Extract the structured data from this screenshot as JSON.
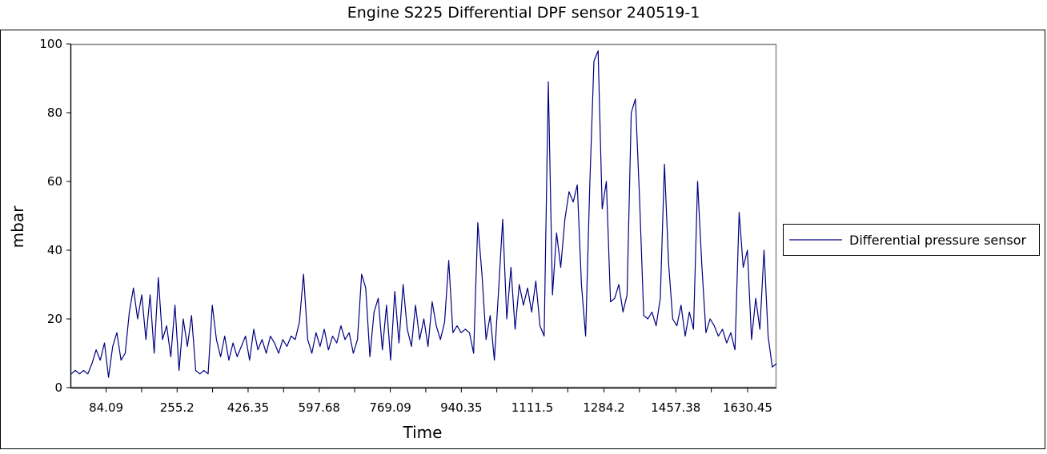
{
  "chart_data": {
    "type": "line",
    "title": "Engine S225  Differential DPF sensor 240519-1",
    "xlabel": "Time",
    "ylabel": "mbar",
    "xlim": [
      0,
      1700
    ],
    "ylim": [
      0,
      100
    ],
    "yticks": [
      0,
      20,
      40,
      60,
      80,
      100
    ],
    "xtick_labels": [
      "84.09",
      "255.2",
      "426.35",
      "597.68",
      "769.09",
      "940.35",
      "1111.5",
      "1284.2",
      "1457.38",
      "1630.45"
    ],
    "grid": false,
    "legend_position": "right",
    "series": [
      {
        "name": "Differential pressure sensor",
        "color": "#000080",
        "x_step": 10,
        "values": [
          4,
          5,
          4,
          5,
          4,
          7,
          11,
          8,
          13,
          3,
          12,
          16,
          8,
          10,
          22,
          29,
          20,
          27,
          14,
          27,
          10,
          32,
          14,
          18,
          9,
          24,
          5,
          20,
          12,
          21,
          5,
          4,
          5,
          4,
          24,
          14,
          9,
          15,
          8,
          13,
          9,
          12,
          15,
          8,
          17,
          11,
          14,
          10,
          15,
          13,
          10,
          14,
          12,
          15,
          14,
          19,
          33,
          14,
          10,
          16,
          12,
          17,
          11,
          15,
          13,
          18,
          14,
          16,
          10,
          14,
          33,
          29,
          9,
          22,
          26,
          11,
          24,
          8,
          28,
          13,
          30,
          17,
          12,
          24,
          14,
          20,
          12,
          25,
          18,
          14,
          19,
          37,
          16,
          18,
          16,
          17,
          16,
          10,
          48,
          33,
          14,
          21,
          8,
          28,
          49,
          20,
          35,
          17,
          30,
          24,
          29,
          22,
          31,
          18,
          15,
          89,
          27,
          45,
          35,
          49,
          57,
          54,
          59,
          30,
          15,
          59,
          95,
          98,
          52,
          60,
          25,
          26,
          30,
          22,
          27,
          80,
          84,
          55,
          21,
          20,
          22,
          18,
          26,
          65,
          36,
          20,
          18,
          24,
          15,
          22,
          17,
          60,
          36,
          16,
          20,
          18,
          15,
          17,
          13,
          16,
          11,
          51,
          35,
          40,
          14,
          26,
          17,
          40,
          15,
          6,
          7
        ]
      }
    ]
  }
}
